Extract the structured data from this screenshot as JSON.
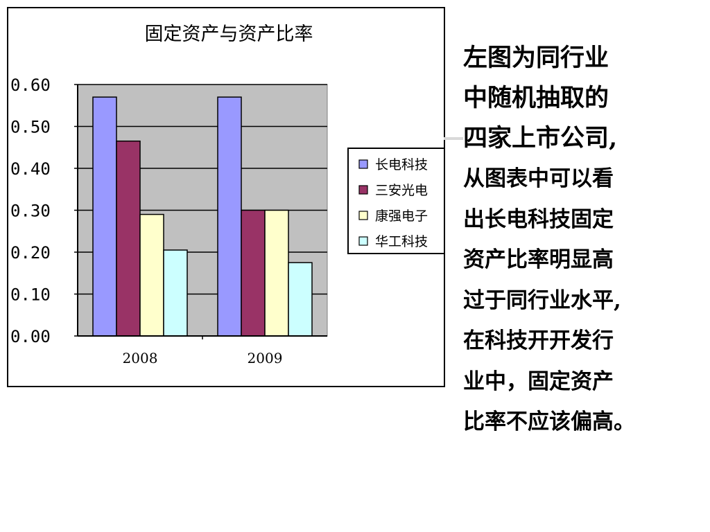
{
  "chart_data": {
    "type": "bar",
    "title": "固定资产与资产比率",
    "categories": [
      "2008",
      "2009"
    ],
    "series": [
      {
        "name": "长电科技",
        "values": [
          0.57,
          0.57
        ],
        "color": "#9999ff"
      },
      {
        "name": "三安光电",
        "values": [
          0.465,
          0.3
        ],
        "color": "#993366"
      },
      {
        "name": "康强电子",
        "values": [
          0.29,
          0.3
        ],
        "color": "#ffffcc"
      },
      {
        "name": "华工科技",
        "values": [
          0.205,
          0.175
        ],
        "color": "#ccffff"
      }
    ],
    "ylim": [
      0,
      0.6
    ],
    "yticks": [
      "0.00",
      "0.10",
      "0.20",
      "0.30",
      "0.40",
      "0.50",
      "0.60"
    ],
    "xlabel": "",
    "ylabel": "",
    "grid": true,
    "legend": "right",
    "plot_background": "#c0c0c0"
  },
  "side_text": {
    "lead_lines": [
      "左图为同行业",
      "中随机抽取的",
      "四家上市公司,"
    ],
    "body_lines": [
      "从图表中可以看",
      "出长电科技固定",
      "资产比率明显高",
      "过于同行业水平,",
      "在科技开开发行",
      "业中，固定资产",
      "比率不应该偏高。"
    ]
  }
}
